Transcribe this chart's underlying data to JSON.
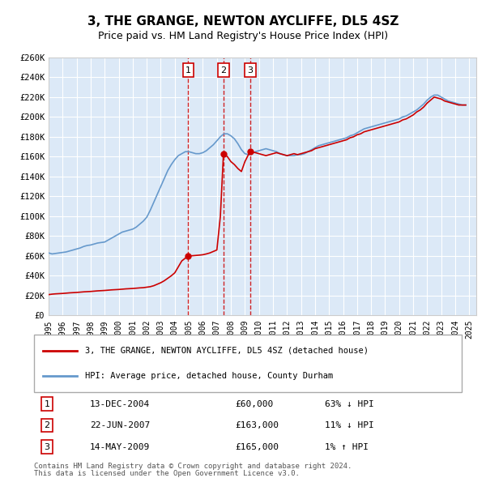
{
  "title": "3, THE GRANGE, NEWTON AYCLIFFE, DL5 4SZ",
  "subtitle": "Price paid vs. HM Land Registry's House Price Index (HPI)",
  "background_color": "#dce9f7",
  "plot_bg_color": "#dce9f7",
  "ylabel": "",
  "xlabel": "",
  "ylim": [
    0,
    260000
  ],
  "yticks": [
    0,
    20000,
    40000,
    60000,
    80000,
    100000,
    120000,
    140000,
    160000,
    180000,
    200000,
    220000,
    240000,
    260000
  ],
  "ytick_labels": [
    "£0",
    "£20K",
    "£40K",
    "£60K",
    "£80K",
    "£100K",
    "£120K",
    "£140K",
    "£160K",
    "£180K",
    "£200K",
    "£220K",
    "£240K",
    "£260K"
  ],
  "hpi_color": "#6699cc",
  "price_color": "#cc0000",
  "sale_marker_color": "#cc0000",
  "sale_line_color": "#cc0000",
  "transactions": [
    {
      "num": 1,
      "date": "13-DEC-2004",
      "price": 60000,
      "year": 2004.96,
      "label": "13-DEC-2004",
      "price_str": "£60,000",
      "hpi_str": "63% ↓ HPI"
    },
    {
      "num": 2,
      "date": "22-JUN-2007",
      "price": 163000,
      "year": 2007.47,
      "label": "22-JUN-2007",
      "price_str": "£163,000",
      "hpi_str": "11% ↓ HPI"
    },
    {
      "num": 3,
      "date": "14-MAY-2009",
      "price": 165000,
      "year": 2009.37,
      "label": "14-MAY-2009",
      "price_str": "£165,000",
      "hpi_str": "1% ↑ HPI"
    }
  ],
  "legend_line1": "3, THE GRANGE, NEWTON AYCLIFFE, DL5 4SZ (detached house)",
  "legend_line2": "HPI: Average price, detached house, County Durham",
  "footer1": "Contains HM Land Registry data © Crown copyright and database right 2024.",
  "footer2": "This data is licensed under the Open Government Licence v3.0.",
  "hpi_data": {
    "years": [
      1995.0,
      1995.25,
      1995.5,
      1995.75,
      1996.0,
      1996.25,
      1996.5,
      1996.75,
      1997.0,
      1997.25,
      1997.5,
      1997.75,
      1998.0,
      1998.25,
      1998.5,
      1998.75,
      1999.0,
      1999.25,
      1999.5,
      1999.75,
      2000.0,
      2000.25,
      2000.5,
      2000.75,
      2001.0,
      2001.25,
      2001.5,
      2001.75,
      2002.0,
      2002.25,
      2002.5,
      2002.75,
      2003.0,
      2003.25,
      2003.5,
      2003.75,
      2004.0,
      2004.25,
      2004.5,
      2004.75,
      2005.0,
      2005.25,
      2005.5,
      2005.75,
      2006.0,
      2006.25,
      2006.5,
      2006.75,
      2007.0,
      2007.25,
      2007.5,
      2007.75,
      2008.0,
      2008.25,
      2008.5,
      2008.75,
      2009.0,
      2009.25,
      2009.5,
      2009.75,
      2010.0,
      2010.25,
      2010.5,
      2010.75,
      2011.0,
      2011.25,
      2011.5,
      2011.75,
      2012.0,
      2012.25,
      2012.5,
      2012.75,
      2013.0,
      2013.25,
      2013.5,
      2013.75,
      2014.0,
      2014.25,
      2014.5,
      2014.75,
      2015.0,
      2015.25,
      2015.5,
      2015.75,
      2016.0,
      2016.25,
      2016.5,
      2016.75,
      2017.0,
      2017.25,
      2017.5,
      2017.75,
      2018.0,
      2018.25,
      2018.5,
      2018.75,
      2019.0,
      2019.25,
      2019.5,
      2019.75,
      2020.0,
      2020.25,
      2020.5,
      2020.75,
      2021.0,
      2021.25,
      2021.5,
      2021.75,
      2022.0,
      2022.25,
      2022.5,
      2022.75,
      2023.0,
      2023.25,
      2023.5,
      2023.75,
      2024.0,
      2024.25,
      2024.5,
      2024.75
    ],
    "values": [
      63000,
      62000,
      62500,
      63000,
      63500,
      64000,
      65000,
      66000,
      67000,
      68000,
      69500,
      70500,
      71000,
      72000,
      73000,
      73500,
      74000,
      76000,
      78000,
      80000,
      82000,
      84000,
      85000,
      86000,
      87000,
      89000,
      92000,
      95000,
      99000,
      106000,
      114000,
      122000,
      130000,
      138000,
      146000,
      152000,
      157000,
      161000,
      163000,
      165000,
      165000,
      164000,
      163000,
      163000,
      164000,
      166000,
      169000,
      172000,
      176000,
      180000,
      183000,
      183000,
      181000,
      178000,
      173000,
      167000,
      163000,
      162000,
      163000,
      165000,
      166000,
      167000,
      168000,
      167000,
      166000,
      165000,
      163000,
      162000,
      161000,
      161000,
      161000,
      162000,
      162000,
      163000,
      165000,
      167000,
      169000,
      171000,
      172000,
      173000,
      174000,
      175000,
      176000,
      177000,
      178000,
      179000,
      181000,
      182000,
      184000,
      186000,
      188000,
      189000,
      190000,
      191000,
      192000,
      193000,
      194000,
      195000,
      196000,
      197000,
      198000,
      200000,
      201000,
      203000,
      205000,
      207000,
      210000,
      213000,
      217000,
      220000,
      222000,
      222000,
      220000,
      218000,
      216000,
      215000,
      214000,
      213000,
      212000,
      212000
    ]
  },
  "price_data": {
    "years": [
      1995.0,
      1995.25,
      1995.5,
      1995.75,
      1996.0,
      1996.25,
      1996.5,
      1996.75,
      1997.0,
      1997.25,
      1997.5,
      1997.75,
      1998.0,
      1998.25,
      1998.5,
      1998.75,
      1999.0,
      1999.25,
      1999.5,
      1999.75,
      2000.0,
      2000.25,
      2000.5,
      2000.75,
      2001.0,
      2001.25,
      2001.5,
      2001.75,
      2002.0,
      2002.25,
      2002.5,
      2002.75,
      2003.0,
      2003.25,
      2003.5,
      2003.75,
      2004.0,
      2004.25,
      2004.5,
      2004.96,
      2005.0,
      2005.25,
      2005.5,
      2005.75,
      2006.0,
      2006.25,
      2006.5,
      2006.75,
      2007.0,
      2007.25,
      2007.47,
      2007.75,
      2008.0,
      2008.25,
      2008.5,
      2008.75,
      2009.0,
      2009.25,
      2009.37,
      2009.75,
      2010.0,
      2010.25,
      2010.5,
      2010.75,
      2011.0,
      2011.25,
      2011.5,
      2011.75,
      2012.0,
      2012.25,
      2012.5,
      2012.75,
      2013.0,
      2013.25,
      2013.5,
      2013.75,
      2014.0,
      2014.25,
      2014.5,
      2014.75,
      2015.0,
      2015.25,
      2015.5,
      2015.75,
      2016.0,
      2016.25,
      2016.5,
      2016.75,
      2017.0,
      2017.25,
      2017.5,
      2017.75,
      2018.0,
      2018.25,
      2018.5,
      2018.75,
      2019.0,
      2019.25,
      2019.5,
      2019.75,
      2020.0,
      2020.25,
      2020.5,
      2020.75,
      2021.0,
      2021.25,
      2021.5,
      2021.75,
      2022.0,
      2022.25,
      2022.5,
      2022.75,
      2023.0,
      2023.25,
      2023.5,
      2023.75,
      2024.0,
      2024.25,
      2024.5,
      2024.75
    ],
    "values": [
      21000,
      21500,
      21800,
      22000,
      22200,
      22500,
      22800,
      23000,
      23200,
      23500,
      23800,
      24000,
      24200,
      24500,
      24800,
      25000,
      25200,
      25500,
      25800,
      26000,
      26200,
      26500,
      26800,
      27000,
      27200,
      27500,
      27800,
      28000,
      28500,
      29000,
      30000,
      31500,
      33000,
      35000,
      37500,
      40000,
      43000,
      49000,
      55000,
      60000,
      60000,
      60200,
      60500,
      60800,
      61200,
      62000,
      63000,
      64500,
      66000,
      100000,
      163000,
      160000,
      155000,
      152000,
      148000,
      145000,
      155000,
      162000,
      165000,
      164000,
      163000,
      162000,
      161000,
      162000,
      163000,
      164000,
      163000,
      162000,
      161000,
      162000,
      163000,
      162000,
      163000,
      164000,
      165000,
      166000,
      168000,
      169000,
      170000,
      171000,
      172000,
      173000,
      174000,
      175000,
      176000,
      177000,
      179000,
      180000,
      182000,
      183000,
      185000,
      186000,
      187000,
      188000,
      189000,
      190000,
      191000,
      192000,
      193000,
      194000,
      195000,
      197000,
      198000,
      200000,
      202000,
      205000,
      207000,
      210000,
      214000,
      217000,
      220000,
      219000,
      218000,
      216000,
      215000,
      214000,
      213000,
      212000,
      212000,
      212000
    ]
  }
}
